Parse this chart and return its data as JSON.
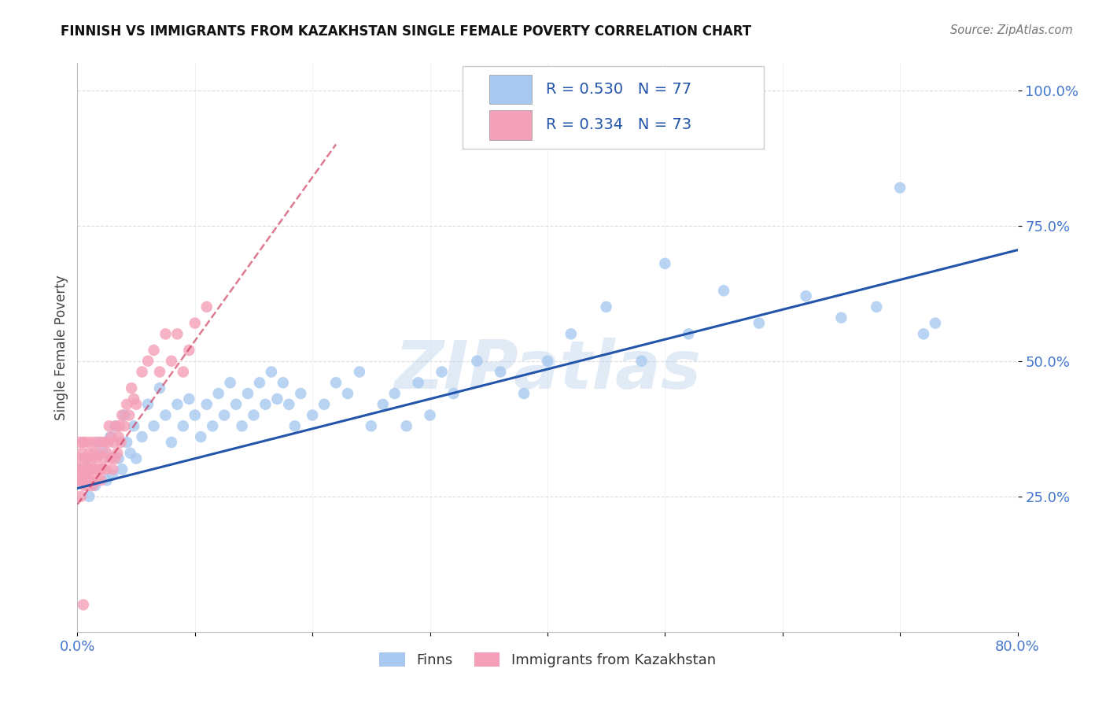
{
  "title": "FINNISH VS IMMIGRANTS FROM KAZAKHSTAN SINGLE FEMALE POVERTY CORRELATION CHART",
  "source": "Source: ZipAtlas.com",
  "ylabel": "Single Female Poverty",
  "xlim": [
    0.0,
    0.8
  ],
  "ylim": [
    0.0,
    1.05
  ],
  "finns_color": "#a8c8f0",
  "immigrants_color": "#f4a0b8",
  "trend_finns_color": "#2255aa",
  "trend_immigrants_color": "#cc3355",
  "legend_finns_label": "R = 0.530   N = 77",
  "legend_immigrants_label": "R = 0.334   N = 73",
  "legend_finns_color_box": "#a8c8f0",
  "legend_immigrants_color_box": "#f4a0b8",
  "watermark": "ZIPatlas",
  "legend_label_finns": "Finns",
  "legend_label_immigrants": "Immigrants from Kazakhstan",
  "background_color": "#ffffff",
  "grid_color": "#dddddd",
  "finns_x": [
    0.005,
    0.008,
    0.01,
    0.012,
    0.015,
    0.018,
    0.02,
    0.022,
    0.025,
    0.028,
    0.03,
    0.032,
    0.035,
    0.038,
    0.04,
    0.042,
    0.045,
    0.048,
    0.05,
    0.055,
    0.06,
    0.065,
    0.07,
    0.075,
    0.08,
    0.085,
    0.09,
    0.095,
    0.1,
    0.105,
    0.11,
    0.115,
    0.12,
    0.125,
    0.13,
    0.135,
    0.14,
    0.145,
    0.15,
    0.155,
    0.16,
    0.165,
    0.17,
    0.175,
    0.18,
    0.185,
    0.19,
    0.2,
    0.21,
    0.22,
    0.23,
    0.24,
    0.25,
    0.26,
    0.27,
    0.28,
    0.29,
    0.3,
    0.31,
    0.32,
    0.34,
    0.36,
    0.38,
    0.4,
    0.42,
    0.45,
    0.48,
    0.5,
    0.52,
    0.55,
    0.58,
    0.62,
    0.65,
    0.68,
    0.7,
    0.72,
    0.73
  ],
  "finns_y": [
    0.28,
    0.32,
    0.25,
    0.3,
    0.27,
    0.35,
    0.3,
    0.33,
    0.28,
    0.36,
    0.29,
    0.38,
    0.32,
    0.3,
    0.4,
    0.35,
    0.33,
    0.38,
    0.32,
    0.36,
    0.42,
    0.38,
    0.45,
    0.4,
    0.35,
    0.42,
    0.38,
    0.43,
    0.4,
    0.36,
    0.42,
    0.38,
    0.44,
    0.4,
    0.46,
    0.42,
    0.38,
    0.44,
    0.4,
    0.46,
    0.42,
    0.48,
    0.43,
    0.46,
    0.42,
    0.38,
    0.44,
    0.4,
    0.42,
    0.46,
    0.44,
    0.48,
    0.38,
    0.42,
    0.44,
    0.38,
    0.46,
    0.4,
    0.48,
    0.44,
    0.5,
    0.48,
    0.44,
    0.5,
    0.55,
    0.6,
    0.5,
    0.68,
    0.55,
    0.63,
    0.57,
    0.62,
    0.58,
    0.6,
    0.82,
    0.55,
    0.57
  ],
  "immigrants_x": [
    0.0005,
    0.001,
    0.0015,
    0.002,
    0.002,
    0.003,
    0.003,
    0.004,
    0.004,
    0.005,
    0.005,
    0.005,
    0.006,
    0.006,
    0.007,
    0.007,
    0.008,
    0.008,
    0.009,
    0.009,
    0.01,
    0.01,
    0.011,
    0.011,
    0.012,
    0.012,
    0.013,
    0.013,
    0.014,
    0.015,
    0.015,
    0.016,
    0.017,
    0.018,
    0.019,
    0.02,
    0.02,
    0.021,
    0.022,
    0.023,
    0.024,
    0.025,
    0.026,
    0.027,
    0.028,
    0.029,
    0.03,
    0.031,
    0.032,
    0.033,
    0.034,
    0.035,
    0.036,
    0.037,
    0.038,
    0.04,
    0.042,
    0.044,
    0.046,
    0.048,
    0.05,
    0.055,
    0.06,
    0.065,
    0.07,
    0.075,
    0.08,
    0.085,
    0.09,
    0.095,
    0.1,
    0.11,
    0.005
  ],
  "immigrants_y": [
    0.28,
    0.32,
    0.3,
    0.28,
    0.35,
    0.3,
    0.25,
    0.33,
    0.28,
    0.3,
    0.35,
    0.28,
    0.32,
    0.27,
    0.3,
    0.35,
    0.28,
    0.32,
    0.3,
    0.27,
    0.33,
    0.28,
    0.3,
    0.35,
    0.28,
    0.32,
    0.3,
    0.27,
    0.33,
    0.3,
    0.35,
    0.32,
    0.28,
    0.33,
    0.3,
    0.28,
    0.35,
    0.3,
    0.32,
    0.35,
    0.3,
    0.33,
    0.35,
    0.38,
    0.32,
    0.36,
    0.3,
    0.35,
    0.32,
    0.38,
    0.33,
    0.36,
    0.38,
    0.35,
    0.4,
    0.38,
    0.42,
    0.4,
    0.45,
    0.43,
    0.42,
    0.48,
    0.5,
    0.52,
    0.48,
    0.55,
    0.5,
    0.55,
    0.48,
    0.52,
    0.57,
    0.6,
    0.05
  ],
  "finns_trend_x0": 0.0,
  "finns_trend_x1": 0.8,
  "finns_trend_y0": 0.265,
  "finns_trend_y1": 0.705,
  "imm_trend_x0": -0.005,
  "imm_trend_x1": 0.22,
  "imm_trend_y0": 0.22,
  "imm_trend_y1": 0.9
}
